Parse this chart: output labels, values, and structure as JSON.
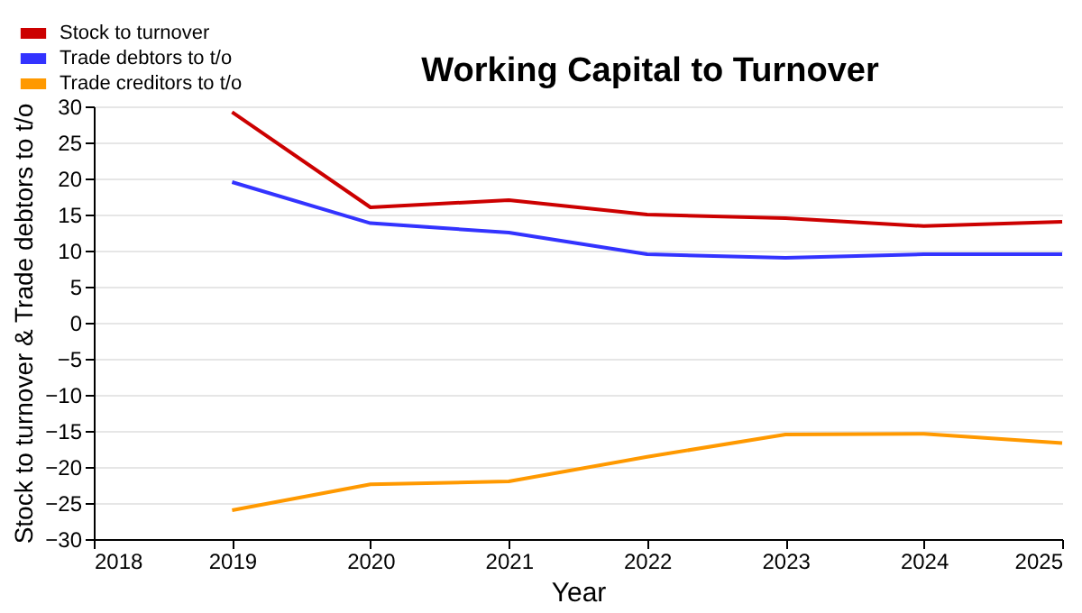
{
  "chart_data": {
    "type": "line",
    "title": "Working Capital to Turnover",
    "xlabel": "Year",
    "ylabel": "Stock to turnover & Trade debtors to t/o",
    "x": [
      2019,
      2020,
      2021,
      2022,
      2023,
      2024,
      2025
    ],
    "series": [
      {
        "name": "Stock to turnover",
        "color": "#cc0000",
        "values": [
          29.2,
          16.0,
          17.0,
          15.0,
          14.5,
          13.4,
          14.0
        ]
      },
      {
        "name": "Trade debtors to t/o",
        "color": "#3333ff",
        "values": [
          19.5,
          13.8,
          12.5,
          9.5,
          9.0,
          9.5,
          9.5
        ]
      },
      {
        "name": "Trade creditors to t/o",
        "color": "#ff9900",
        "values": [
          -26.0,
          -22.4,
          -22.0,
          -18.6,
          -15.5,
          -15.4,
          -16.7
        ]
      }
    ],
    "xlim": [
      2018,
      2025
    ],
    "xticks": [
      2018,
      2019,
      2020,
      2021,
      2022,
      2023,
      2024,
      2025
    ],
    "ylim": [
      -30,
      30
    ],
    "yticks": [
      -30,
      -25,
      -20,
      -15,
      -10,
      -5,
      0,
      5,
      10,
      15,
      20,
      25,
      30
    ],
    "grid": "y",
    "legend": "top left",
    "marker": "none",
    "line_style": "solid"
  }
}
